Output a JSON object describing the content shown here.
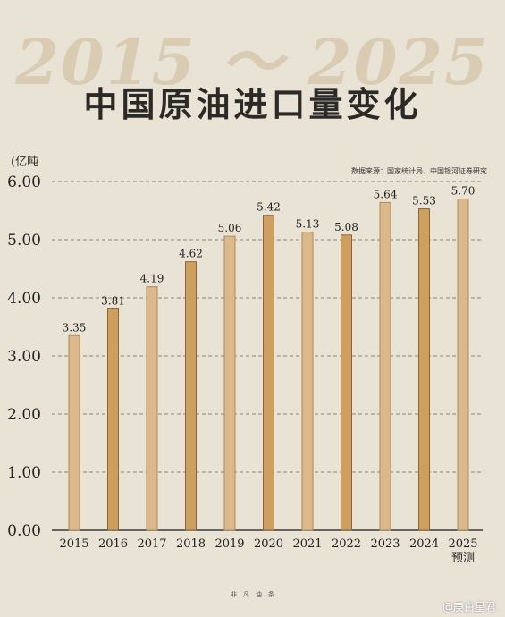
{
  "header": {
    "bg_year": "2015 ～ 2025",
    "title": "中国原油进口量变化"
  },
  "chart_data": {
    "type": "bar",
    "title": "中国原油进口量变化",
    "ylabel": "(亿吨",
    "source": "数据来源：国家统计局、中国银河证券研究",
    "ylim": [
      0,
      6
    ],
    "yticks": [
      "0.00",
      "1.00",
      "2.00",
      "3.00",
      "4.00",
      "5.00",
      "6.00"
    ],
    "categories": [
      "2015",
      "2016",
      "2017",
      "2018",
      "2019",
      "2020",
      "2021",
      "2022",
      "2023",
      "2024",
      "2025"
    ],
    "category_notes": [
      "",
      "",
      "",
      "",
      "",
      "",
      "",
      "",
      "",
      "",
      "预测"
    ],
    "values": [
      3.35,
      3.81,
      4.19,
      4.62,
      5.06,
      5.42,
      5.13,
      5.08,
      5.64,
      5.53,
      5.7
    ],
    "value_labels": [
      "3.35",
      "3.81",
      "4.19",
      "4.62",
      "5.06",
      "5.42",
      "5.13",
      "5.08",
      "5.64",
      "5.53",
      "5.70"
    ],
    "grid": "horizontal-dashed",
    "colors": {
      "light": "#dcb98c",
      "dark": "#cf9f5f",
      "light_edge": "#b08a5a",
      "dark_edge": "#8a6635"
    }
  },
  "footer": {
    "text": "非　凡　油　条"
  },
  "watermark": {
    "text": "@庚白星君"
  }
}
